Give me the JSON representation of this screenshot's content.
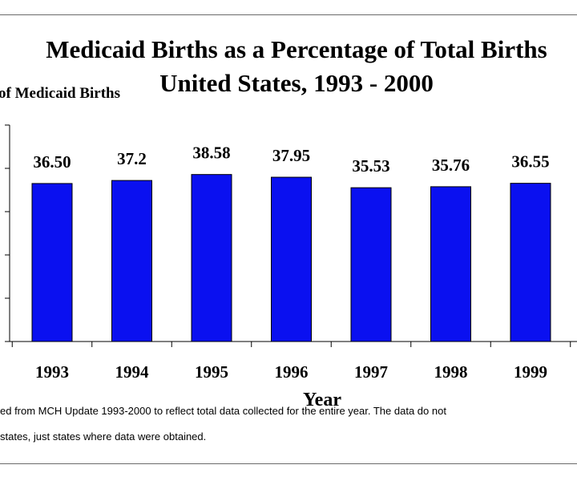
{
  "chart_data": {
    "type": "bar",
    "title_lines": [
      "Medicaid Births as a Percentage of Total Births",
      "United States, 1993 - 2000"
    ],
    "ylabel": "of Medicaid Births",
    "xlabel": "Year",
    "categories": [
      "1993",
      "1994",
      "1995",
      "1996",
      "1997",
      "1998",
      "1999"
    ],
    "values": [
      36.5,
      37.2,
      38.58,
      37.95,
      35.53,
      35.76,
      36.55
    ],
    "data_labels": [
      "36.50",
      "37.2",
      "38.58",
      "37.95",
      "35.53",
      "35.76",
      "36.55"
    ],
    "ylim": [
      0,
      50
    ],
    "bar_color": "#0a10f0",
    "grid": false,
    "legend": "none"
  },
  "notes": [
    "ed from MCH Update 1993-2000 to reflect total data collected for the entire year.  The data do not",
    "states, just states where data were obtained."
  ]
}
